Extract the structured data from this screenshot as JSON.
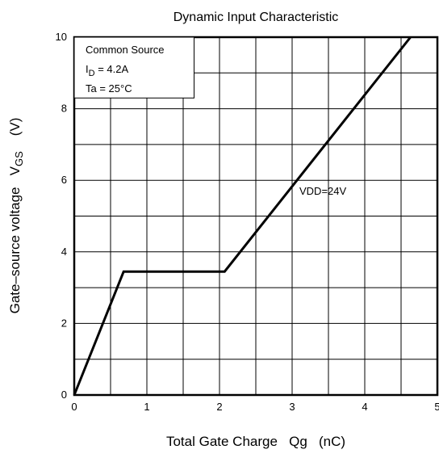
{
  "chart_data": {
    "type": "line",
    "title": "Dynamic Input Characteristic",
    "xlabel": "Total Gate Charge   Qg   (nC)",
    "ylabel": {
      "prefix": "Gate–source voltage   V",
      "subscript": "GS",
      "unit": "(V)"
    },
    "xlim": [
      0,
      5
    ],
    "ylim": [
      0,
      10
    ],
    "x_ticks": [
      0,
      1,
      2,
      3,
      4,
      5
    ],
    "y_ticks": [
      0,
      2,
      4,
      6,
      8,
      10
    ],
    "x_minor_step": 0.5,
    "y_minor_step": 1,
    "grid": true,
    "legend_box": {
      "placement": "top-left",
      "lines": [
        {
          "text": "Common Source"
        },
        {
          "prefix": "I",
          "subscript": "D",
          "suffix": " = 4.2A"
        },
        {
          "text": "Ta = 25°C"
        }
      ]
    },
    "series": [
      {
        "name": "VDD=24V",
        "x": [
          0,
          0.68,
          2.07,
          4.63
        ],
        "y": [
          0,
          3.45,
          3.45,
          10
        ]
      }
    ],
    "annotations": [
      {
        "text": "VDD=24V",
        "x": 3.1,
        "y": 5.6
      }
    ]
  }
}
